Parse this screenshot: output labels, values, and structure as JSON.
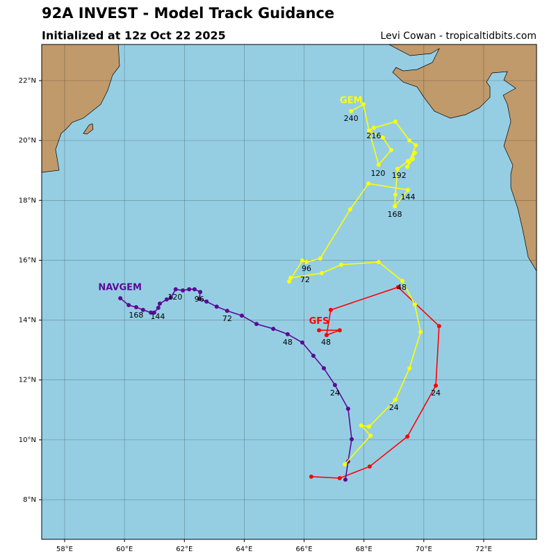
{
  "chart_data": {
    "type": "line",
    "title": "92A INVEST - Model Track Guidance",
    "subtitle": "Initialized at 12z Oct 22 2025",
    "credit": "Levi Cowan - tropicaltidbits.com",
    "xlim": [
      57.234,
      73.765
    ],
    "ylim": [
      6.677,
      23.207
    ],
    "grid": true,
    "xticks": [
      {
        "value": 58,
        "label": "58°E"
      },
      {
        "value": 60,
        "label": "60°E"
      },
      {
        "value": 62,
        "label": "62°E"
      },
      {
        "value": 64,
        "label": "64°E"
      },
      {
        "value": 66,
        "label": "66°E"
      },
      {
        "value": 68,
        "label": "68°E"
      },
      {
        "value": 70,
        "label": "70°E"
      },
      {
        "value": 72,
        "label": "72°E"
      }
    ],
    "yticks": [
      {
        "value": 8,
        "label": "8°N"
      },
      {
        "value": 10,
        "label": "10°N"
      },
      {
        "value": 12,
        "label": "12°N"
      },
      {
        "value": 14,
        "label": "14°N"
      },
      {
        "value": 16,
        "label": "16°N"
      },
      {
        "value": 18,
        "label": "18°N"
      },
      {
        "value": 20,
        "label": "20°N"
      },
      {
        "value": 22,
        "label": "22°N"
      }
    ],
    "series": [
      {
        "name": "GFS",
        "color": "#ff0000",
        "name_at": [
          66.5,
          13.95
        ],
        "x": [
          66.24,
          67.19,
          68.19,
          69.45,
          70.4,
          70.51,
          69.14,
          66.89,
          66.75,
          67.19,
          66.5
        ],
        "y": [
          8.77,
          8.72,
          9.11,
          10.11,
          11.81,
          13.8,
          15.1,
          14.34,
          13.5,
          13.66,
          13.66
        ],
        "labels": [
          {
            "text": "24",
            "x": 70.4,
            "y": 11.55
          },
          {
            "text": "48",
            "x": 66.73,
            "y": 13.25
          }
        ]
      },
      {
        "name": "NAVGEM",
        "color": "#5a0a96",
        "name_at": [
          59.85,
          15.08
        ],
        "x": [
          67.38,
          67.47,
          67.59,
          67.47,
          67.03,
          66.66,
          66.31,
          65.94,
          65.45,
          64.97,
          64.41,
          63.92,
          63.43,
          63.08,
          62.74,
          62.5,
          62.53,
          62.34,
          62.16,
          61.95,
          61.71,
          61.55,
          61.41,
          61.18,
          61.13,
          60.99,
          60.88,
          60.62,
          60.39,
          60.14,
          59.86
        ],
        "y": [
          8.67,
          9.28,
          10.02,
          11.04,
          11.83,
          12.39,
          12.81,
          13.25,
          13.53,
          13.71,
          13.87,
          14.15,
          14.31,
          14.45,
          14.62,
          14.71,
          14.94,
          15.03,
          15.03,
          14.99,
          15.03,
          14.76,
          14.69,
          14.55,
          14.41,
          14.25,
          14.25,
          14.34,
          14.43,
          14.5,
          14.73
        ],
        "labels": [
          {
            "text": "24",
            "x": 67.03,
            "y": 11.55
          },
          {
            "text": "48",
            "x": 65.45,
            "y": 13.25
          },
          {
            "text": "72",
            "x": 63.43,
            "y": 14.04
          },
          {
            "text": "96",
            "x": 62.5,
            "y": 14.69
          },
          {
            "text": "120",
            "x": 61.69,
            "y": 14.76
          },
          {
            "text": "144",
            "x": 61.11,
            "y": 14.11
          },
          {
            "text": "168",
            "x": 60.39,
            "y": 14.15
          }
        ]
      },
      {
        "name": "GEM",
        "color": "#ffff00",
        "name_at": [
          67.57,
          21.33
        ],
        "x": [
          67.36,
          68.22,
          67.91,
          68.17,
          69.05,
          69.52,
          69.89,
          69.7,
          69.28,
          68.49,
          67.24,
          66.59,
          65.55,
          65.5,
          65.94,
          66.08,
          66.54,
          67.54,
          68.15,
          69.47,
          69.03,
          69.05,
          69.12,
          69.47,
          69.7,
          69.63,
          69.45,
          69.73,
          69.52,
          69.05,
          68.33,
          68.17,
          68.63,
          68.91,
          68.49,
          68.17,
          67.98,
          67.57
        ],
        "y": [
          9.18,
          10.14,
          10.48,
          10.44,
          11.34,
          12.39,
          13.6,
          14.52,
          15.31,
          15.94,
          15.85,
          15.57,
          15.41,
          15.29,
          15.99,
          15.94,
          16.06,
          17.7,
          18.56,
          18.35,
          17.8,
          18.19,
          19.05,
          19.31,
          19.59,
          19.38,
          19.12,
          19.84,
          20.0,
          20.63,
          20.42,
          20.33,
          20.1,
          19.68,
          19.19,
          20.33,
          21.21,
          20.98
        ],
        "labels": [
          {
            "text": "24",
            "x": 69.0,
            "y": 11.06
          },
          {
            "text": "48",
            "x": 69.26,
            "y": 15.08
          },
          {
            "text": "72",
            "x": 66.03,
            "y": 15.34
          },
          {
            "text": "96",
            "x": 66.08,
            "y": 15.71
          },
          {
            "text": "120",
            "x": 68.47,
            "y": 18.89
          },
          {
            "text": "144",
            "x": 69.47,
            "y": 18.1
          },
          {
            "text": "168",
            "x": 69.03,
            "y": 17.52
          },
          {
            "text": "192",
            "x": 69.17,
            "y": 18.82
          },
          {
            "text": "216",
            "x": 68.33,
            "y": 20.14
          },
          {
            "text": "240",
            "x": 67.57,
            "y": 20.72
          }
        ]
      }
    ]
  }
}
